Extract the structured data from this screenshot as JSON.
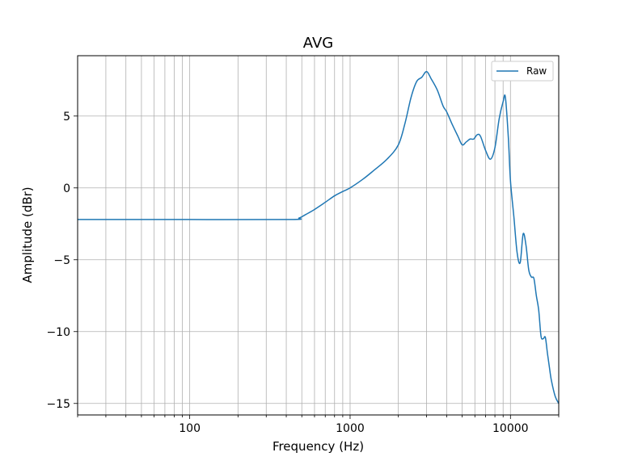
{
  "chart_data": {
    "type": "line",
    "title": "AVG",
    "xlabel": "Frequency (Hz)",
    "ylabel": "Amplitude (dBr)",
    "xscale": "log",
    "xlim": [
      20,
      20000
    ],
    "ylim": [
      -15.8,
      9.2
    ],
    "xticks": [
      {
        "value": 100,
        "label": "100"
      },
      {
        "value": 1000,
        "label": "1000"
      },
      {
        "value": 10000,
        "label": "10000"
      }
    ],
    "yticks": [
      {
        "value": 5,
        "label": "5"
      },
      {
        "value": 0,
        "label": "0"
      },
      {
        "value": -5,
        "label": "−5"
      },
      {
        "value": -10,
        "label": "−10"
      },
      {
        "value": -15,
        "label": "−15"
      }
    ],
    "grid": true,
    "legend_position": "top-right",
    "series": [
      {
        "name": "Raw",
        "color": "#1f77b4",
        "x": [
          20,
          100,
          430,
          480,
          520,
          600,
          700,
          800,
          900,
          1000,
          1200,
          1400,
          1700,
          2000,
          2200,
          2400,
          2600,
          2800,
          3000,
          3200,
          3500,
          3800,
          4000,
          4300,
          4700,
          5000,
          5300,
          5600,
          5900,
          6200,
          6500,
          7000,
          7500,
          8000,
          8500,
          9000,
          9300,
          9700,
          10000,
          10500,
          11000,
          11500,
          12000,
          12500,
          13000,
          13500,
          14000,
          14500,
          15000,
          15500,
          16000,
          16500,
          17000,
          17500,
          18000,
          19000,
          20000
        ],
        "y": [
          -2.2,
          -2.2,
          -2.2,
          -2.1,
          -1.9,
          -1.5,
          -1.0,
          -0.55,
          -0.25,
          0.0,
          0.6,
          1.2,
          2.0,
          3.0,
          4.5,
          6.3,
          7.4,
          7.7,
          8.1,
          7.6,
          6.8,
          5.7,
          5.3,
          4.5,
          3.6,
          3.0,
          3.2,
          3.4,
          3.4,
          3.7,
          3.6,
          2.6,
          2.0,
          2.8,
          4.8,
          6.0,
          6.3,
          3.5,
          0.5,
          -2.0,
          -4.5,
          -5.2,
          -3.2,
          -4.0,
          -5.7,
          -6.2,
          -6.3,
          -7.5,
          -8.5,
          -10.3,
          -10.5,
          -10.4,
          -11.5,
          -12.5,
          -13.4,
          -14.5,
          -15.0
        ]
      }
    ]
  }
}
